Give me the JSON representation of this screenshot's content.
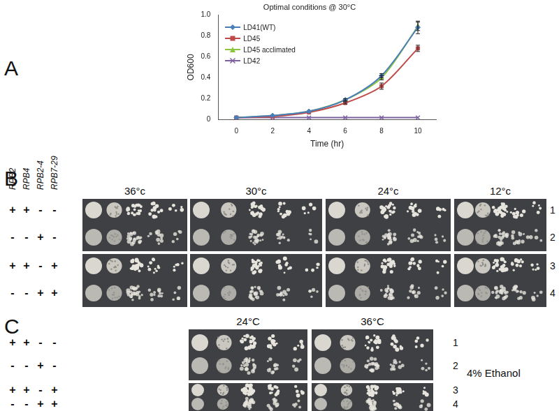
{
  "chart_data": {
    "type": "line",
    "title": "Optimal conditions @ 30°C",
    "x_label": "Time (hr)",
    "y_label": "OD600",
    "x": [
      0,
      2,
      4,
      6,
      8,
      10
    ],
    "series": [
      {
        "name": "LD41(WT)",
        "color": "#4a7ebb",
        "marker": "diamond",
        "values": [
          0.02,
          0.04,
          0.08,
          0.19,
          0.42,
          0.88
        ],
        "errors": [
          null,
          null,
          null,
          0.01,
          0.02,
          0.06
        ]
      },
      {
        "name": "LD45",
        "color": "#be4b48",
        "marker": "square",
        "values": [
          0.02,
          0.03,
          0.07,
          0.16,
          0.32,
          0.68
        ],
        "errors": [
          null,
          null,
          null,
          0.01,
          0.03,
          0.03
        ]
      },
      {
        "name": "LD45 acclimated",
        "color": "#8cc63f",
        "marker": "triangle",
        "values": [
          0.02,
          0.04,
          0.08,
          0.19,
          0.4,
          0.89
        ],
        "errors": [
          null,
          null,
          null,
          0.01,
          0.02,
          0.04
        ]
      },
      {
        "name": "LD42",
        "color": "#7d60a0",
        "marker": "x",
        "values": [
          0.02,
          0.02,
          0.02,
          0.02,
          0.02,
          0.02
        ]
      }
    ],
    "xlim": [
      -1,
      11
    ],
    "xticks": [
      0,
      2,
      4,
      6,
      8,
      10
    ],
    "ylim": [
      0,
      1
    ],
    "yticks": [
      0,
      0.2,
      0.4,
      0.6,
      0.8,
      {
        "value": 1,
        "label": "1.0"
      }
    ],
    "grid": false,
    "legend": "top-left"
  },
  "panel_labels": [
    "A",
    "B",
    "C"
  ],
  "genotype_header": [
    "RPB2",
    "RPB4",
    "RPB2-4",
    "RPB7-29"
  ],
  "panel_b": {
    "temperatures": [
      "36°c",
      "30°c",
      "24°c",
      "12°c"
    ],
    "rows": [
      {
        "number": 1,
        "genotype": [
          "+",
          "+",
          "-",
          "-"
        ]
      },
      {
        "number": 2,
        "genotype": [
          "-",
          "-",
          "+",
          "-"
        ]
      },
      {
        "number": 3,
        "genotype": [
          "+",
          "+",
          "-",
          "+"
        ]
      },
      {
        "number": 4,
        "genotype": [
          "-",
          "-",
          "+",
          "+"
        ]
      }
    ]
  },
  "panel_c": {
    "temperatures": [
      "24°C",
      "36°C"
    ],
    "condition": "4% Ethanol",
    "rows": [
      {
        "number": 1,
        "genotype": [
          "+",
          "+",
          "-",
          "-"
        ]
      },
      {
        "number": 2,
        "genotype": [
          "-",
          "-",
          "+",
          "-"
        ]
      },
      {
        "number": 3,
        "genotype": [
          "+",
          "+",
          "-",
          "+"
        ]
      },
      {
        "number": 4,
        "genotype": [
          "-",
          "-",
          "+",
          "+"
        ]
      }
    ]
  }
}
